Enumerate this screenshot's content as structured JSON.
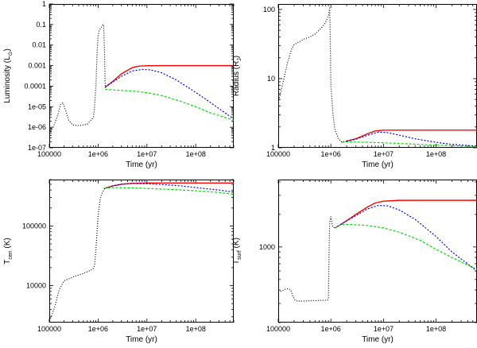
{
  "chart_data": [
    {
      "type": "line",
      "xlabel": "Time (yr)",
      "ylabel": "Luminosity (L",
      "ylabel_sub": "⊙",
      "ylabel_end": ")",
      "xscale": "log",
      "yscale": "log",
      "xlim": [
        100000,
        600000000
      ],
      "ylim": [
        1e-07,
        1
      ],
      "xticks": [
        100000,
        1000000,
        10000000,
        100000000
      ],
      "xtick_labels": [
        "100000",
        "1e+06",
        "1e+07",
        "1e+08"
      ],
      "yticks": [
        1e-07,
        1e-06,
        1e-05,
        0.0001,
        0.001,
        0.01,
        0.1,
        1
      ],
      "ytick_labels": [
        "1e-07",
        "1e-06",
        "1e-05",
        "0.0001",
        "0.001",
        "0.01",
        "0.1",
        "1"
      ],
      "series": [
        {
          "name": "red",
          "color": "#ff0000",
          "dash": "",
          "x": [
            1400000,
            2000000,
            3000000,
            5000000,
            7000000,
            10000000,
            20000000,
            100000000,
            600000000
          ],
          "y": [
            9e-05,
            0.00017,
            0.0004,
            0.0008,
            0.00095,
            0.00099,
            0.001,
            0.001,
            0.001
          ]
        },
        {
          "name": "blue",
          "color": "#0000ff",
          "dash": "2,2",
          "x": [
            1400000,
            2000000,
            3000000,
            5000000,
            8000000,
            12000000,
            20000000,
            40000000,
            80000000,
            200000000,
            600000000
          ],
          "y": [
            9e-05,
            0.00016,
            0.0003,
            0.00055,
            0.00065,
            0.00062,
            0.00045,
            0.0002,
            7e-05,
            1.6e-05,
            2.5e-06
          ]
        },
        {
          "name": "green",
          "color": "#00dd00",
          "dash": "3,2",
          "x": [
            1400000,
            2000000,
            5000000,
            10000000,
            20000000,
            50000000,
            100000000,
            200000000,
            600000000
          ],
          "y": [
            7e-05,
            6.5e-05,
            5.8e-05,
            4.8e-05,
            3.5e-05,
            1.8e-05,
            1e-05,
            5e-06,
            2.2e-06
          ]
        },
        {
          "name": "black",
          "color": "#000000",
          "dash": "1,2",
          "x": [
            100000,
            120000,
            150000,
            170000,
            190000,
            210000,
            250000,
            300000,
            400000,
            600000,
            800000,
            850000,
            900000,
            930000,
            960000,
            1000000,
            1050000,
            1100000,
            1200000,
            1250000,
            1300000,
            1350000,
            1400000
          ],
          "y": [
            5e-07,
            1e-06,
            4e-06,
            1.3e-05,
            1.6e-05,
            8e-06,
            2.2e-06,
            1.3e-06,
            1.2e-06,
            1.4e-06,
            3e-06,
            1.1e-05,
            0.0001,
            0.0008,
            0.006,
            0.03,
            0.05,
            0.06,
            0.08,
            0.1,
            0.09,
            0.005,
            8e-05
          ]
        }
      ]
    },
    {
      "type": "line",
      "xlabel": "Time (yr)",
      "ylabel": "Radius (R",
      "ylabel_sub": "J",
      "ylabel_end": ")",
      "xscale": "log",
      "yscale": "log",
      "xlim": [
        100000,
        600000000
      ],
      "ylim": [
        1,
        120
      ],
      "xticks": [
        100000,
        1000000,
        10000000,
        100000000
      ],
      "xtick_labels": [
        "100000",
        "1e+06",
        "1e+07",
        "1e+08"
      ],
      "yticks": [
        1,
        10,
        100
      ],
      "ytick_labels": [
        "1",
        "10",
        "100"
      ],
      "series": [
        {
          "name": "red",
          "color": "#ff0000",
          "dash": "",
          "x": [
            2000000,
            3000000,
            5000000,
            7000000,
            10000000,
            20000000,
            600000000
          ],
          "y": [
            1.25,
            1.35,
            1.6,
            1.75,
            1.8,
            1.8,
            1.8
          ]
        },
        {
          "name": "blue",
          "color": "#0000ff",
          "dash": "2,2",
          "x": [
            2000000,
            3000000,
            5000000,
            8000000,
            12000000,
            20000000,
            40000000,
            100000000,
            200000000,
            600000000
          ],
          "y": [
            1.25,
            1.33,
            1.52,
            1.68,
            1.66,
            1.52,
            1.35,
            1.2,
            1.12,
            1.06
          ]
        },
        {
          "name": "green",
          "color": "#00dd00",
          "dash": "3,2",
          "x": [
            1600000,
            2000000,
            5000000,
            10000000,
            30000000,
            100000000,
            600000000
          ],
          "y": [
            1.2,
            1.22,
            1.2,
            1.18,
            1.14,
            1.09,
            1.04
          ]
        },
        {
          "name": "black",
          "color": "#000000",
          "dash": "1,2",
          "x": [
            100000,
            120000,
            150000,
            180000,
            200000,
            250000,
            300000,
            400000,
            500000,
            600000,
            700000,
            800000,
            900000,
            950000,
            970000,
            1000000,
            1100000,
            1200000,
            1400000,
            1600000,
            2000000
          ],
          "y": [
            4.5,
            8,
            17,
            27,
            31,
            34,
            37,
            40,
            44,
            50,
            57,
            66,
            80,
            105,
            50,
            8,
            3,
            1.8,
            1.35,
            1.22,
            1.25
          ]
        }
      ]
    },
    {
      "type": "line",
      "xlabel": "Time (yr)",
      "ylabel": "T",
      "ylabel_sub": "cen",
      "ylabel_end": " (K)",
      "xscale": "log",
      "yscale": "log",
      "xlim": [
        100000,
        600000000
      ],
      "ylim": [
        2400,
        600000
      ],
      "xticks": [
        100000,
        1000000,
        10000000,
        100000000
      ],
      "xtick_labels": [
        "100000",
        "1e+06",
        "1e+07",
        "1e+08"
      ],
      "yticks": [
        10000,
        100000
      ],
      "ytick_labels": [
        "10000",
        "100000"
      ],
      "series": [
        {
          "name": "red",
          "color": "#ff0000",
          "dash": "",
          "x": [
            1400000,
            2000000,
            3000000,
            5000000,
            10000000,
            20000000,
            600000000
          ],
          "y": [
            430000,
            470000,
            500000,
            520000,
            525000,
            525000,
            525000
          ]
        },
        {
          "name": "blue",
          "color": "#0000ff",
          "dash": "2,2",
          "x": [
            1400000,
            2000000,
            3000000,
            5000000,
            10000000,
            20000000,
            50000000,
            100000000,
            300000000,
            600000000
          ],
          "y": [
            430000,
            470000,
            500000,
            515000,
            510000,
            495000,
            470000,
            440000,
            400000,
            370000
          ]
        },
        {
          "name": "green",
          "color": "#00dd00",
          "dash": "3,2",
          "x": [
            1300000,
            2000000,
            5000000,
            10000000,
            30000000,
            100000000,
            300000000,
            600000000
          ],
          "y": [
            430000,
            440000,
            435000,
            425000,
            410000,
            390000,
            365000,
            340000
          ]
        },
        {
          "name": "black",
          "color": "#000000",
          "dash": "1,2",
          "x": [
            100000,
            110000,
            130000,
            160000,
            200000,
            250000,
            350000,
            500000,
            700000,
            800000,
            850000,
            900000,
            1000000,
            1100000,
            1200000,
            1300000,
            1400000
          ],
          "y": [
            2600,
            3000,
            4500,
            8500,
            12000,
            13000,
            14500,
            16000,
            18000,
            19500,
            22000,
            40000,
            150000,
            280000,
            350000,
            400000,
            430000
          ]
        }
      ]
    },
    {
      "type": "line",
      "xlabel": "Time (yr)",
      "ylabel": "T",
      "ylabel_sub": "surf",
      "ylabel_end": " (K)",
      "xscale": "log",
      "yscale": "log",
      "xlim": [
        100000,
        600000000
      ],
      "ylim": [
        200,
        4200
      ],
      "xticks": [
        100000,
        1000000,
        10000000,
        100000000
      ],
      "xtick_labels": [
        "100000",
        "1e+06",
        "1e+07",
        "1e+08"
      ],
      "yticks": [
        1000
      ],
      "ytick_labels": [
        "1000"
      ],
      "series": [
        {
          "name": "red",
          "color": "#ff0000",
          "dash": "",
          "x": [
            1200000,
            1500000,
            2000000,
            3000000,
            5000000,
            7000000,
            10000000,
            20000000,
            600000000
          ],
          "y": [
            1500,
            1600,
            1750,
            2000,
            2350,
            2550,
            2650,
            2700,
            2700
          ]
        },
        {
          "name": "blue",
          "color": "#0000ff",
          "dash": "2,2",
          "x": [
            1200000,
            1500000,
            2000000,
            3000000,
            5000000,
            8000000,
            12000000,
            20000000,
            40000000,
            100000000,
            200000000,
            600000000
          ],
          "y": [
            1500,
            1600,
            1750,
            1950,
            2250,
            2420,
            2400,
            2200,
            1800,
            1250,
            900,
            600
          ]
        },
        {
          "name": "green",
          "color": "#00dd00",
          "dash": "3,2",
          "x": [
            1200000,
            1500000,
            2000000,
            5000000,
            10000000,
            20000000,
            50000000,
            100000000,
            200000000,
            600000000
          ],
          "y": [
            1500,
            1600,
            1620,
            1580,
            1500,
            1370,
            1150,
            950,
            800,
            620
          ]
        },
        {
          "name": "black",
          "color": "#000000",
          "dash": "1,2",
          "x": [
            100000,
            120000,
            140000,
            160000,
            175000,
            190000,
            210000,
            250000,
            400000,
            600000,
            850000,
            900000,
            920000,
            950000,
            1000000,
            1050000,
            1100000,
            1200000
          ],
          "y": [
            380,
            395,
            410,
            410,
            395,
            350,
            320,
            315,
            318,
            320,
            322,
            330,
            800,
            1700,
            1900,
            1650,
            1520,
            1500
          ]
        }
      ]
    }
  ]
}
